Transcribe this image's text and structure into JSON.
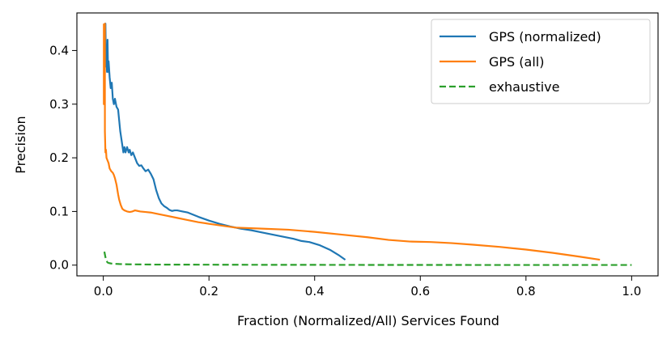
{
  "chart_data": {
    "type": "line",
    "title": "",
    "xlabel": "Fraction (Normalized/All) Services Found",
    "ylabel": "Precision",
    "xlim": [
      -0.05,
      1.05
    ],
    "ylim": [
      -0.02,
      0.47
    ],
    "xticks": [
      0.0,
      0.2,
      0.4,
      0.6,
      0.8,
      1.0
    ],
    "xtick_labels": [
      "0.0",
      "0.2",
      "0.4",
      "0.6",
      "0.8",
      "1.0"
    ],
    "yticks": [
      0.0,
      0.1,
      0.2,
      0.3,
      0.4
    ],
    "ytick_labels": [
      "0.0",
      "0.1",
      "0.2",
      "0.3",
      "0.4"
    ],
    "grid": false,
    "legend_position": "top-right",
    "series": [
      {
        "name": "GPS (normalized)",
        "color": "#1f77b4",
        "dash": "solid",
        "x": [
          0.002,
          0.003,
          0.004,
          0.005,
          0.006,
          0.007,
          0.008,
          0.009,
          0.01,
          0.012,
          0.014,
          0.016,
          0.018,
          0.02,
          0.022,
          0.025,
          0.028,
          0.03,
          0.032,
          0.035,
          0.038,
          0.04,
          0.042,
          0.045,
          0.048,
          0.05,
          0.053,
          0.056,
          0.06,
          0.064,
          0.068,
          0.072,
          0.076,
          0.08,
          0.085,
          0.09,
          0.095,
          0.1,
          0.105,
          0.11,
          0.115,
          0.12,
          0.125,
          0.13,
          0.135,
          0.14,
          0.15,
          0.16,
          0.17,
          0.18,
          0.2,
          0.22,
          0.24,
          0.26,
          0.28,
          0.3,
          0.32,
          0.34,
          0.36,
          0.375,
          0.39,
          0.41,
          0.43,
          0.445,
          0.458
        ],
        "y": [
          0.45,
          0.38,
          0.45,
          0.37,
          0.39,
          0.36,
          0.42,
          0.36,
          0.38,
          0.35,
          0.33,
          0.34,
          0.31,
          0.3,
          0.31,
          0.295,
          0.29,
          0.27,
          0.25,
          0.23,
          0.21,
          0.22,
          0.21,
          0.22,
          0.21,
          0.215,
          0.205,
          0.21,
          0.2,
          0.19,
          0.185,
          0.186,
          0.18,
          0.175,
          0.178,
          0.17,
          0.16,
          0.14,
          0.125,
          0.115,
          0.11,
          0.107,
          0.103,
          0.101,
          0.102,
          0.102,
          0.1,
          0.098,
          0.094,
          0.09,
          0.083,
          0.077,
          0.072,
          0.068,
          0.065,
          0.061,
          0.057,
          0.053,
          0.049,
          0.045,
          0.043,
          0.037,
          0.028,
          0.019,
          0.01
        ]
      },
      {
        "name": "GPS (all)",
        "color": "#ff7f0e",
        "dash": "solid",
        "x": [
          0.001,
          0.001,
          0.002,
          0.002,
          0.003,
          0.003,
          0.004,
          0.005,
          0.006,
          0.008,
          0.01,
          0.012,
          0.015,
          0.018,
          0.02,
          0.022,
          0.025,
          0.028,
          0.03,
          0.033,
          0.036,
          0.04,
          0.045,
          0.05,
          0.055,
          0.06,
          0.065,
          0.07,
          0.08,
          0.09,
          0.1,
          0.12,
          0.14,
          0.16,
          0.18,
          0.2,
          0.25,
          0.3,
          0.35,
          0.4,
          0.45,
          0.5,
          0.54,
          0.58,
          0.62,
          0.66,
          0.7,
          0.75,
          0.8,
          0.85,
          0.9,
          0.94
        ],
        "y": [
          0.45,
          0.3,
          0.4,
          0.35,
          0.45,
          0.25,
          0.21,
          0.215,
          0.2,
          0.195,
          0.19,
          0.18,
          0.175,
          0.172,
          0.168,
          0.162,
          0.15,
          0.132,
          0.122,
          0.112,
          0.105,
          0.102,
          0.1,
          0.099,
          0.1,
          0.102,
          0.101,
          0.1,
          0.099,
          0.098,
          0.096,
          0.092,
          0.088,
          0.084,
          0.08,
          0.077,
          0.07,
          0.068,
          0.066,
          0.062,
          0.057,
          0.052,
          0.047,
          0.044,
          0.043,
          0.041,
          0.038,
          0.034,
          0.029,
          0.023,
          0.016,
          0.01
        ]
      },
      {
        "name": "exhaustive",
        "color": "#2ca02c",
        "dash": "dashed",
        "x": [
          0.002,
          0.004,
          0.006,
          0.008,
          0.01,
          0.015,
          0.02,
          0.03,
          0.05,
          0.1,
          0.2,
          0.3,
          0.4,
          0.5,
          0.6,
          0.7,
          0.8,
          0.9,
          1.0
        ],
        "y": [
          0.025,
          0.015,
          0.008,
          0.005,
          0.004,
          0.003,
          0.0025,
          0.002,
          0.0015,
          0.001,
          0.0008,
          0.0006,
          0.0005,
          0.0004,
          0.0004,
          0.0003,
          0.0003,
          0.0003,
          0.0003
        ]
      }
    ]
  }
}
